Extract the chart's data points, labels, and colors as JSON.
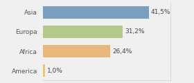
{
  "categories": [
    "Asia",
    "Europa",
    "Africa",
    "America"
  ],
  "values": [
    41.5,
    31.2,
    26.4,
    1.0
  ],
  "labels": [
    "41,5%",
    "31,2%",
    "26,4%",
    "1,0%"
  ],
  "bar_colors": [
    "#7a9ec0",
    "#b5c98a",
    "#e8b87a",
    "#e8c86a"
  ],
  "background_color": "#f0f0f0",
  "xlim": [
    0,
    50
  ],
  "label_fontsize": 6.5,
  "tick_fontsize": 6.5,
  "bar_height": 0.65
}
